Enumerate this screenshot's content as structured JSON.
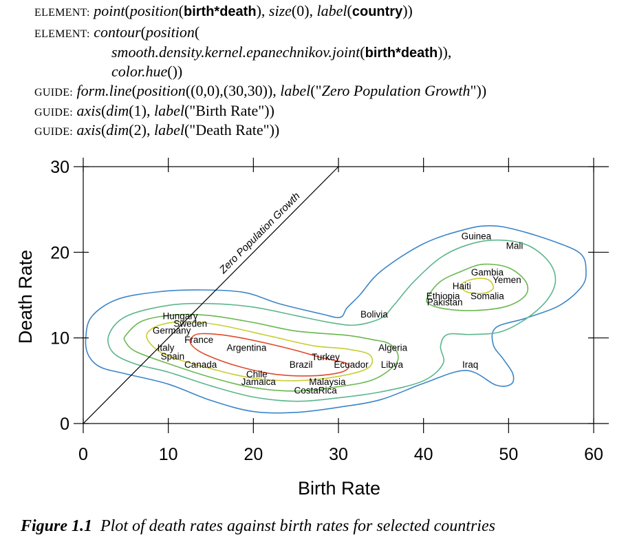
{
  "code_lines": [
    {
      "kw": "ELEMENT:",
      "parts": [
        {
          "t": " ",
          "c": ""
        },
        {
          "t": "point",
          "c": "it"
        },
        {
          "t": "(",
          "c": ""
        },
        {
          "t": "position",
          "c": "it"
        },
        {
          "t": "(",
          "c": ""
        },
        {
          "t": "birth*death",
          "c": "bold"
        },
        {
          "t": "), ",
          "c": ""
        },
        {
          "t": "size",
          "c": "it"
        },
        {
          "t": "(0), ",
          "c": ""
        },
        {
          "t": "label",
          "c": "it"
        },
        {
          "t": "(",
          "c": ""
        },
        {
          "t": "country",
          "c": "bold"
        },
        {
          "t": "))",
          "c": ""
        }
      ]
    },
    {
      "kw": "ELEMENT:",
      "parts": [
        {
          "t": " ",
          "c": ""
        },
        {
          "t": "contour",
          "c": "it"
        },
        {
          "t": "(",
          "c": ""
        },
        {
          "t": "position",
          "c": "it"
        },
        {
          "t": "(",
          "c": ""
        }
      ]
    },
    {
      "kw": "",
      "indent": 112,
      "parts": [
        {
          "t": "smooth.density.kernel.epanechnikov.joint",
          "c": "it"
        },
        {
          "t": "(",
          "c": ""
        },
        {
          "t": "birth*death",
          "c": "bold"
        },
        {
          "t": ")),",
          "c": ""
        }
      ]
    },
    {
      "kw": "",
      "indent": 112,
      "parts": [
        {
          "t": "color.hue",
          "c": "it"
        },
        {
          "t": "())",
          "c": ""
        }
      ]
    },
    {
      "kw": "GUIDE:",
      "parts": [
        {
          "t": " ",
          "c": ""
        },
        {
          "t": "form.line",
          "c": "it"
        },
        {
          "t": "(",
          "c": ""
        },
        {
          "t": "position",
          "c": "it"
        },
        {
          "t": "((0,0),(30,30)), ",
          "c": ""
        },
        {
          "t": "label",
          "c": "it"
        },
        {
          "t": "(\"",
          "c": ""
        },
        {
          "t": "Zero Population Growth",
          "c": "it"
        },
        {
          "t": "\"))",
          "c": ""
        }
      ]
    },
    {
      "kw": "GUIDE:",
      "parts": [
        {
          "t": " ",
          "c": ""
        },
        {
          "t": "axis",
          "c": "it"
        },
        {
          "t": "(",
          "c": ""
        },
        {
          "t": "dim",
          "c": "it"
        },
        {
          "t": "(1), ",
          "c": ""
        },
        {
          "t": "label",
          "c": "it"
        },
        {
          "t": "(\"Birth Rate\"))",
          "c": ""
        }
      ]
    },
    {
      "kw": "GUIDE:",
      "parts": [
        {
          "t": " ",
          "c": ""
        },
        {
          "t": "axis",
          "c": "it"
        },
        {
          "t": "(",
          "c": ""
        },
        {
          "t": "dim",
          "c": "it"
        },
        {
          "t": "(2), ",
          "c": ""
        },
        {
          "t": "label",
          "c": "it"
        },
        {
          "t": "(\"Death Rate\"))",
          "c": ""
        }
      ]
    }
  ],
  "chart_data": {
    "type": "scatter",
    "xlabel": "Birth Rate",
    "ylabel": "Death Rate",
    "xlim": [
      0,
      60
    ],
    "ylim": [
      0,
      30
    ],
    "xticks": [
      0,
      10,
      20,
      30,
      40,
      50,
      60
    ],
    "yticks": [
      0,
      10,
      20,
      30
    ],
    "grid": false,
    "reference_line": {
      "from": [
        0,
        0
      ],
      "to": [
        30,
        30
      ],
      "label": "Zero Population Growth"
    },
    "points": [
      {
        "label": "Guinea",
        "x": 46.2,
        "y": 21.9
      },
      {
        "label": "Mali",
        "x": 50.7,
        "y": 20.8
      },
      {
        "label": "Gambia",
        "x": 47.5,
        "y": 17.7
      },
      {
        "label": "Yemen",
        "x": 49.8,
        "y": 16.8
      },
      {
        "label": "Haiti",
        "x": 44.5,
        "y": 16.1
      },
      {
        "label": "Ethiopia",
        "x": 42.3,
        "y": 14.9
      },
      {
        "label": "Somalia",
        "x": 47.5,
        "y": 14.9
      },
      {
        "label": "Pakistan",
        "x": 42.5,
        "y": 14.2
      },
      {
        "label": "Bolivia",
        "x": 34.2,
        "y": 12.8
      },
      {
        "label": "Hungary",
        "x": 11.4,
        "y": 12.6
      },
      {
        "label": "Sweden",
        "x": 12.6,
        "y": 11.7
      },
      {
        "label": "Germany",
        "x": 10.4,
        "y": 10.9
      },
      {
        "label": "France",
        "x": 13.6,
        "y": 9.8
      },
      {
        "label": "Italy",
        "x": 9.7,
        "y": 8.9
      },
      {
        "label": "Argentina",
        "x": 19.2,
        "y": 8.9
      },
      {
        "label": "Algeria",
        "x": 36.4,
        "y": 8.9
      },
      {
        "label": "Spain",
        "x": 10.5,
        "y": 7.9
      },
      {
        "label": "Turkey",
        "x": 28.5,
        "y": 7.8
      },
      {
        "label": "Canada",
        "x": 13.8,
        "y": 6.9
      },
      {
        "label": "Brazil",
        "x": 25.6,
        "y": 6.9
      },
      {
        "label": "Ecuador",
        "x": 31.5,
        "y": 6.9
      },
      {
        "label": "Libya",
        "x": 36.3,
        "y": 6.9
      },
      {
        "label": "Iraq",
        "x": 45.5,
        "y": 6.9
      },
      {
        "label": "Chile",
        "x": 20.4,
        "y": 5.8
      },
      {
        "label": "Jamaica",
        "x": 20.6,
        "y": 4.9
      },
      {
        "label": "Malaysia",
        "x": 28.7,
        "y": 4.9
      },
      {
        "label": "CostaRica",
        "x": 27.3,
        "y": 3.9
      }
    ],
    "contour_colors": [
      "#3b85c8",
      "#5bb58c",
      "#69b84f",
      "#c8cc30",
      "#e04a2a"
    ],
    "contours": [
      {
        "color": "#3b85c8",
        "points": [
          [
            0.3,
            10
          ],
          [
            1,
            12.5
          ],
          [
            4,
            14.5
          ],
          [
            9,
            15.4
          ],
          [
            14,
            15.6
          ],
          [
            19,
            15.3
          ],
          [
            23,
            14
          ],
          [
            28,
            12.8
          ],
          [
            30.2,
            12.4
          ],
          [
            31,
            13.5
          ],
          [
            32.5,
            15
          ],
          [
            35,
            17.8
          ],
          [
            40,
            21
          ],
          [
            45,
            22.7
          ],
          [
            48,
            23.1
          ],
          [
            51,
            22.6
          ],
          [
            55.5,
            21.2
          ],
          [
            58.5,
            19.8
          ],
          [
            59.1,
            17.8
          ],
          [
            58.6,
            16
          ],
          [
            56,
            13.8
          ],
          [
            52,
            12.3
          ],
          [
            48.5,
            11.2
          ],
          [
            48.2,
            9.2
          ],
          [
            49.4,
            7.5
          ],
          [
            50.5,
            5.8
          ],
          [
            50.3,
            4.6
          ],
          [
            48.5,
            4.5
          ],
          [
            45,
            6.2
          ],
          [
            40,
            4.7
          ],
          [
            35,
            2.8
          ],
          [
            30,
            1.9
          ],
          [
            25,
            1.3
          ],
          [
            20,
            1.4
          ],
          [
            15,
            2.7
          ],
          [
            10,
            4.6
          ],
          [
            5,
            5.8
          ],
          [
            2,
            6.6
          ],
          [
            0.6,
            8
          ]
        ]
      },
      {
        "color": "#5bb58c",
        "points": [
          [
            3,
            10.3
          ],
          [
            5,
            12.5
          ],
          [
            10,
            13.8
          ],
          [
            15,
            14
          ],
          [
            20,
            13.6
          ],
          [
            25,
            12.6
          ],
          [
            29,
            11.8
          ],
          [
            32,
            11.5
          ],
          [
            35,
            12.3
          ],
          [
            36.5,
            13.8
          ],
          [
            38.8,
            16.5
          ],
          [
            42.2,
            19.5
          ],
          [
            46,
            21.1
          ],
          [
            49.5,
            21.4
          ],
          [
            52.5,
            20.7
          ],
          [
            54.8,
            18.8
          ],
          [
            55.5,
            16.6
          ],
          [
            54.5,
            14.4
          ],
          [
            52,
            12.2
          ],
          [
            49,
            10.7
          ],
          [
            45.5,
            10.4
          ],
          [
            42.8,
            10.4
          ],
          [
            42,
            9
          ],
          [
            42.3,
            7
          ],
          [
            40,
            5
          ],
          [
            35,
            3.7
          ],
          [
            30,
            3
          ],
          [
            25,
            2.6
          ],
          [
            20,
            3.1
          ],
          [
            15,
            4.4
          ],
          [
            10,
            6
          ],
          [
            6,
            7
          ],
          [
            3.5,
            8.3
          ]
        ]
      },
      {
        "color": "#69b84f",
        "points": [
          [
            5,
            10.3
          ],
          [
            7,
            12
          ],
          [
            11,
            12.7
          ],
          [
            15,
            12.6
          ],
          [
            20,
            11.8
          ],
          [
            25,
            10.8
          ],
          [
            31,
            10.3
          ],
          [
            34,
            9.8
          ],
          [
            36,
            9.3
          ],
          [
            37,
            8
          ],
          [
            36.5,
            6.7
          ],
          [
            34,
            5.1
          ],
          [
            30,
            4.3
          ],
          [
            25,
            3.8
          ],
          [
            20,
            4.2
          ],
          [
            15,
            5.4
          ],
          [
            10,
            7
          ],
          [
            6.2,
            8.4
          ],
          [
            5,
            9.5
          ]
        ]
      },
      {
        "color": "#69b84f",
        "points": [
          [
            40.5,
            14.8
          ],
          [
            42,
            16.6
          ],
          [
            44.5,
            17.8
          ],
          [
            47,
            18.6
          ],
          [
            50,
            18.2
          ],
          [
            52,
            16.6
          ],
          [
            52,
            15
          ],
          [
            49.8,
            13.7
          ],
          [
            46,
            13.2
          ],
          [
            42.5,
            13.4
          ],
          [
            40.6,
            14
          ]
        ]
      },
      {
        "color": "#c8cc30",
        "points": [
          [
            7.5,
            10.5
          ],
          [
            9,
            11.5
          ],
          [
            12,
            11.9
          ],
          [
            16,
            11.5
          ],
          [
            22,
            10.2
          ],
          [
            27,
            9.1
          ],
          [
            31,
            8.7
          ],
          [
            33.7,
            8
          ],
          [
            33.5,
            6.5
          ],
          [
            30,
            5.5
          ],
          [
            25,
            5
          ],
          [
            20,
            5.3
          ],
          [
            15,
            6.4
          ],
          [
            10,
            7.9
          ],
          [
            8,
            9.2
          ]
        ]
      },
      {
        "color": "#c8cc30",
        "points": [
          [
            44.5,
            16.3
          ],
          [
            46,
            16.9
          ],
          [
            47.6,
            16.8
          ],
          [
            48.2,
            15.8
          ],
          [
            47,
            15.2
          ],
          [
            45,
            15.4
          ]
        ]
      },
      {
        "color": "#e04a2a",
        "points": [
          [
            12.7,
            10
          ],
          [
            14,
            10.5
          ],
          [
            18,
            10.1
          ],
          [
            24,
            8.8
          ],
          [
            28,
            7.7
          ],
          [
            31,
            7
          ],
          [
            30.6,
            6.1
          ],
          [
            27.5,
            5.6
          ],
          [
            23,
            5.7
          ],
          [
            18.5,
            6.6
          ],
          [
            14.5,
            8
          ],
          [
            12.8,
            9.1
          ]
        ]
      }
    ]
  },
  "caption": {
    "number": "Figure 1.1",
    "text": "Plot of death rates against birth rates for selected countries"
  }
}
